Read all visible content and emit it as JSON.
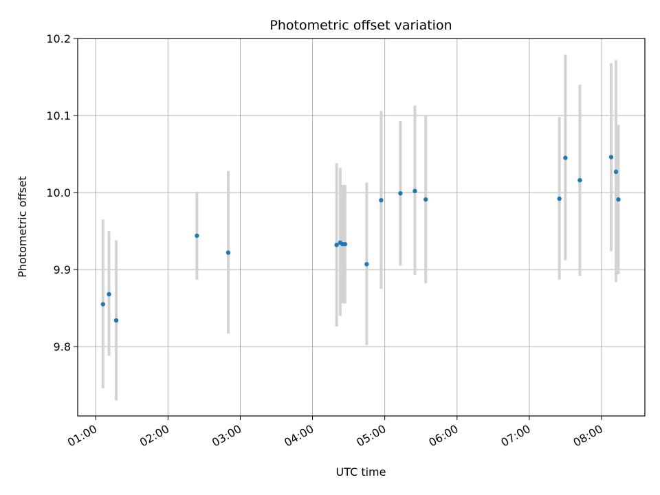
{
  "chart_data": {
    "type": "scatter",
    "title": "Photometric offset variation",
    "xlabel": "UTC time",
    "ylabel": "Photometric offset",
    "x_ticks": [
      "01:00",
      "02:00",
      "03:00",
      "04:00",
      "05:00",
      "06:00",
      "07:00",
      "08:00"
    ],
    "y_ticks": [
      "9.8",
      "9.9",
      "10.0",
      "10.1",
      "10.2"
    ],
    "xlim": [
      "00:45",
      "08:36"
    ],
    "ylim": [
      9.71,
      10.2
    ],
    "grid": true,
    "colors": {
      "point": "#1f77b4",
      "errorbar": "#d3d3d3",
      "grid": "#b0b0b0"
    },
    "x": [
      "01:06",
      "01:11",
      "01:17",
      "02:24",
      "02:50",
      "04:20",
      "04:23",
      "04:25",
      "04:27",
      "04:45",
      "04:57",
      "05:13",
      "05:25",
      "05:34",
      "07:25",
      "07:30",
      "07:42",
      "08:08",
      "08:12",
      "08:14"
    ],
    "y": [
      9.855,
      9.868,
      9.834,
      9.944,
      9.922,
      9.932,
      9.935,
      9.933,
      9.933,
      9.907,
      9.99,
      9.999,
      10.002,
      9.991,
      9.992,
      10.045,
      10.016,
      10.046,
      10.027,
      9.991
    ],
    "err_low": [
      9.746,
      9.788,
      9.73,
      9.887,
      9.817,
      9.826,
      9.84,
      9.856,
      9.856,
      9.802,
      9.875,
      9.905,
      9.893,
      9.882,
      9.887,
      9.912,
      9.892,
      9.924,
      9.884,
      9.894
    ],
    "err_high": [
      9.965,
      9.95,
      9.938,
      10.001,
      10.028,
      10.038,
      10.032,
      10.01,
      10.01,
      10.013,
      10.106,
      10.093,
      10.113,
      10.101,
      10.098,
      10.179,
      10.14,
      10.168,
      10.172,
      10.088
    ]
  }
}
